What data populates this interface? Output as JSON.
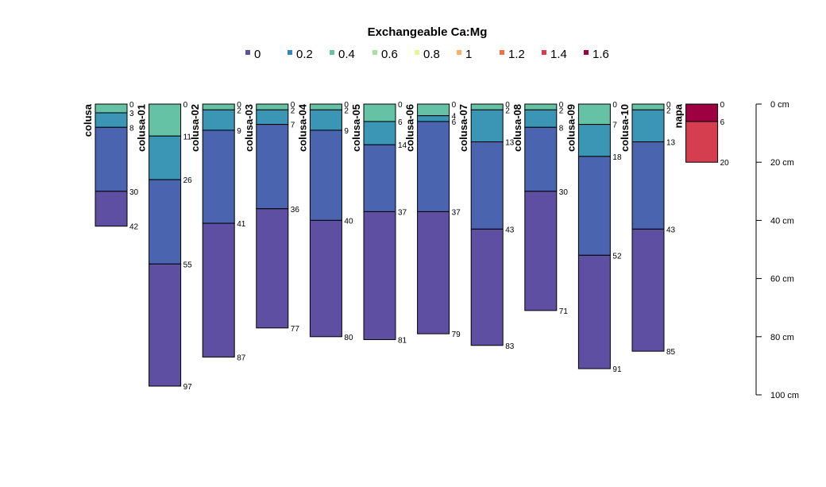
{
  "chart_data": {
    "type": "soil-profile",
    "title": "Exchangeable Ca:Mg",
    "legend": {
      "entries": [
        "0",
        "0.2",
        "0.4",
        "0.6",
        "0.8",
        "1",
        "1.2",
        "1.4",
        "1.6"
      ],
      "colors": [
        "#5E4FA2",
        "#3288BD",
        "#66C2A5",
        "#ABDDA4",
        "#E6F598",
        "#FDAE61",
        "#F46D43",
        "#D53E4F",
        "#9E0142"
      ]
    },
    "depth_axis": {
      "unit": "cm",
      "range": [
        0,
        100
      ],
      "ticks": [
        0,
        20,
        40,
        60,
        80,
        100
      ],
      "tick_labels": [
        "0 cm",
        "20 cm",
        "40 cm",
        "60 cm",
        "80 cm",
        "100 cm"
      ]
    },
    "profiles": [
      {
        "name": "colusa",
        "horizons": [
          {
            "top": 0,
            "bottom": 3,
            "color": "#66C2A5"
          },
          {
            "top": 3,
            "bottom": 8,
            "color": "#3B96B5"
          },
          {
            "top": 8,
            "bottom": 30,
            "color": "#4A64B0"
          },
          {
            "top": 30,
            "bottom": 42,
            "color": "#5E4FA2"
          }
        ]
      },
      {
        "name": "colusa-01",
        "horizons": [
          {
            "top": 0,
            "bottom": 11,
            "color": "#66C2A5"
          },
          {
            "top": 11,
            "bottom": 26,
            "color": "#3B96B5"
          },
          {
            "top": 26,
            "bottom": 55,
            "color": "#4A64B0"
          },
          {
            "top": 55,
            "bottom": 97,
            "color": "#5E4FA2"
          }
        ]
      },
      {
        "name": "colusa-02",
        "horizons": [
          {
            "top": 0,
            "bottom": 2,
            "color": "#66C2A5"
          },
          {
            "top": 2,
            "bottom": 9,
            "color": "#3B96B5"
          },
          {
            "top": 9,
            "bottom": 41,
            "color": "#4A64B0"
          },
          {
            "top": 41,
            "bottom": 87,
            "color": "#5E4FA2"
          }
        ]
      },
      {
        "name": "colusa-03",
        "horizons": [
          {
            "top": 0,
            "bottom": 2,
            "color": "#66C2A5"
          },
          {
            "top": 2,
            "bottom": 7,
            "color": "#3B96B5"
          },
          {
            "top": 7,
            "bottom": 36,
            "color": "#4A64B0"
          },
          {
            "top": 36,
            "bottom": 77,
            "color": "#5E4FA2"
          }
        ]
      },
      {
        "name": "colusa-04",
        "horizons": [
          {
            "top": 0,
            "bottom": 2,
            "color": "#66C2A5"
          },
          {
            "top": 2,
            "bottom": 9,
            "color": "#3B96B5"
          },
          {
            "top": 9,
            "bottom": 40,
            "color": "#4A64B0"
          },
          {
            "top": 40,
            "bottom": 80,
            "color": "#5E4FA2"
          }
        ]
      },
      {
        "name": "colusa-05",
        "horizons": [
          {
            "top": 0,
            "bottom": 6,
            "color": "#66C2A5"
          },
          {
            "top": 6,
            "bottom": 14,
            "color": "#3B96B5"
          },
          {
            "top": 14,
            "bottom": 37,
            "color": "#4A64B0"
          },
          {
            "top": 37,
            "bottom": 81,
            "color": "#5E4FA2"
          }
        ]
      },
      {
        "name": "colusa-06",
        "horizons": [
          {
            "top": 0,
            "bottom": 4,
            "color": "#66C2A5"
          },
          {
            "top": 4,
            "bottom": 6,
            "color": "#3B96B5"
          },
          {
            "top": 6,
            "bottom": 37,
            "color": "#4A64B0"
          },
          {
            "top": 37,
            "bottom": 79,
            "color": "#5E4FA2"
          }
        ]
      },
      {
        "name": "colusa-07",
        "horizons": [
          {
            "top": 0,
            "bottom": 2,
            "color": "#66C2A5"
          },
          {
            "top": 2,
            "bottom": 13,
            "color": "#3B96B5"
          },
          {
            "top": 13,
            "bottom": 43,
            "color": "#4A64B0"
          },
          {
            "top": 43,
            "bottom": 83,
            "color": "#5E4FA2"
          }
        ]
      },
      {
        "name": "colusa-08",
        "horizons": [
          {
            "top": 0,
            "bottom": 2,
            "color": "#66C2A5"
          },
          {
            "top": 2,
            "bottom": 8,
            "color": "#3B96B5"
          },
          {
            "top": 8,
            "bottom": 30,
            "color": "#4A64B0"
          },
          {
            "top": 30,
            "bottom": 71,
            "color": "#5E4FA2"
          }
        ]
      },
      {
        "name": "colusa-09",
        "horizons": [
          {
            "top": 0,
            "bottom": 7,
            "color": "#66C2A5"
          },
          {
            "top": 7,
            "bottom": 18,
            "color": "#3B96B5"
          },
          {
            "top": 18,
            "bottom": 52,
            "color": "#4A64B0"
          },
          {
            "top": 52,
            "bottom": 91,
            "color": "#5E4FA2"
          }
        ]
      },
      {
        "name": "colusa-10",
        "horizons": [
          {
            "top": 0,
            "bottom": 2,
            "color": "#66C2A5"
          },
          {
            "top": 2,
            "bottom": 13,
            "color": "#3B96B5"
          },
          {
            "top": 13,
            "bottom": 43,
            "color": "#4A64B0"
          },
          {
            "top": 43,
            "bottom": 85,
            "color": "#5E4FA2"
          }
        ]
      },
      {
        "name": "napa",
        "horizons": [
          {
            "top": 0,
            "bottom": 6,
            "color": "#9E0142"
          },
          {
            "top": 6,
            "bottom": 20,
            "color": "#D53E4F"
          }
        ]
      }
    ]
  }
}
